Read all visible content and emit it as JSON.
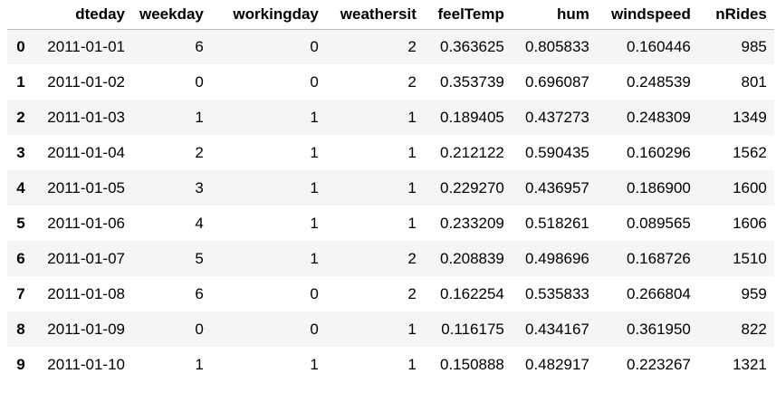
{
  "table": {
    "columns": [
      "",
      "dteday",
      "weekday",
      "workingday",
      "weathersit",
      "feelTemp",
      "hum",
      "windspeed",
      "nRides"
    ],
    "rows": [
      {
        "index": "0",
        "dteday": "2011-01-01",
        "weekday": "6",
        "workingday": "0",
        "weathersit": "2",
        "feelTemp": "0.363625",
        "hum": "0.805833",
        "windspeed": "0.160446",
        "nRides": "985"
      },
      {
        "index": "1",
        "dteday": "2011-01-02",
        "weekday": "0",
        "workingday": "0",
        "weathersit": "2",
        "feelTemp": "0.353739",
        "hum": "0.696087",
        "windspeed": "0.248539",
        "nRides": "801"
      },
      {
        "index": "2",
        "dteday": "2011-01-03",
        "weekday": "1",
        "workingday": "1",
        "weathersit": "1",
        "feelTemp": "0.189405",
        "hum": "0.437273",
        "windspeed": "0.248309",
        "nRides": "1349"
      },
      {
        "index": "3",
        "dteday": "2011-01-04",
        "weekday": "2",
        "workingday": "1",
        "weathersit": "1",
        "feelTemp": "0.212122",
        "hum": "0.590435",
        "windspeed": "0.160296",
        "nRides": "1562"
      },
      {
        "index": "4",
        "dteday": "2011-01-05",
        "weekday": "3",
        "workingday": "1",
        "weathersit": "1",
        "feelTemp": "0.229270",
        "hum": "0.436957",
        "windspeed": "0.186900",
        "nRides": "1600"
      },
      {
        "index": "5",
        "dteday": "2011-01-06",
        "weekday": "4",
        "workingday": "1",
        "weathersit": "1",
        "feelTemp": "0.233209",
        "hum": "0.518261",
        "windspeed": "0.089565",
        "nRides": "1606"
      },
      {
        "index": "6",
        "dteday": "2011-01-07",
        "weekday": "5",
        "workingday": "1",
        "weathersit": "2",
        "feelTemp": "0.208839",
        "hum": "0.498696",
        "windspeed": "0.168726",
        "nRides": "1510"
      },
      {
        "index": "7",
        "dteday": "2011-01-08",
        "weekday": "6",
        "workingday": "0",
        "weathersit": "2",
        "feelTemp": "0.162254",
        "hum": "0.535833",
        "windspeed": "0.266804",
        "nRides": "959"
      },
      {
        "index": "8",
        "dteday": "2011-01-09",
        "weekday": "0",
        "workingday": "0",
        "weathersit": "1",
        "feelTemp": "0.116175",
        "hum": "0.434167",
        "windspeed": "0.361950",
        "nRides": "822"
      },
      {
        "index": "9",
        "dteday": "2011-01-10",
        "weekday": "1",
        "workingday": "1",
        "weathersit": "1",
        "feelTemp": "0.150888",
        "hum": "0.482917",
        "windspeed": "0.223267",
        "nRides": "1321"
      }
    ]
  },
  "colors": {
    "stripe": "#f5f5f5",
    "header_border": "#bdbdbd",
    "text": "#000000"
  }
}
